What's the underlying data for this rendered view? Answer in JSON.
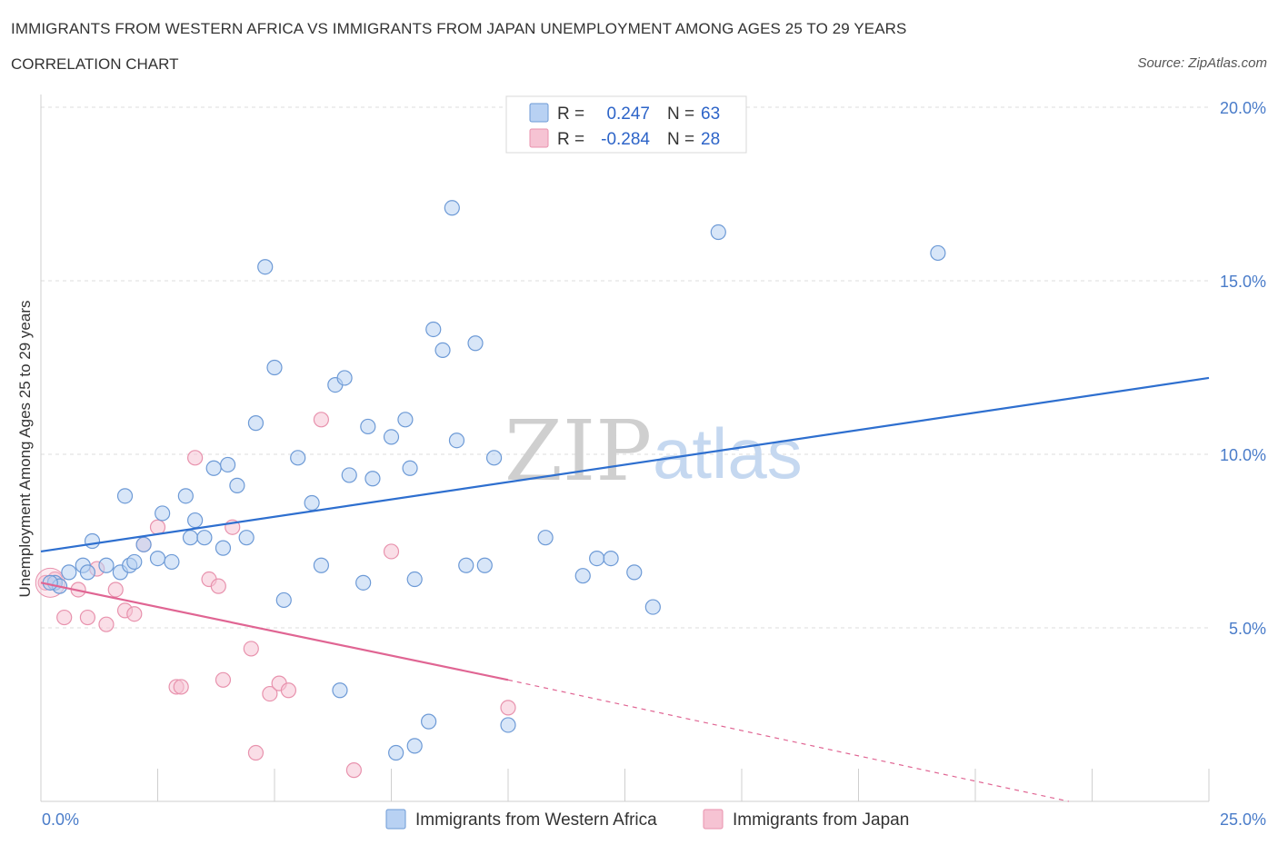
{
  "header": {
    "title": "IMMIGRANTS FROM WESTERN AFRICA VS IMMIGRANTS FROM JAPAN UNEMPLOYMENT AMONG AGES 25 TO 29 YEARS",
    "subtitle": "CORRELATION CHART",
    "source": "Source: ZipAtlas.com"
  },
  "watermark": {
    "zip": "ZIP",
    "atlas": "atlas"
  },
  "legend": {
    "r_label": "R =",
    "n_label": "N =",
    "blue": {
      "r": "0.247",
      "n": "63"
    },
    "pink": {
      "r": "-0.284",
      "n": "28"
    }
  },
  "colors": {
    "blue_fill": "#b8d1f3",
    "blue_stroke": "#6d9ad6",
    "blue_line": "#2e6fcf",
    "pink_fill": "#f6c3d3",
    "pink_stroke": "#e892ad",
    "pink_line": "#e06593",
    "grid": "#dedede",
    "axis_text": "#4a7cc9"
  },
  "chart_data": {
    "type": "scatter",
    "title": "IMMIGRANTS FROM WESTERN AFRICA VS IMMIGRANTS FROM JAPAN UNEMPLOYMENT AMONG AGES 25 TO 29 YEARS",
    "subtitle": "CORRELATION CHART",
    "ylabel": "Unemployment Among Ages 25 to 29 years",
    "xlim": [
      0,
      25
    ],
    "ylim": [
      0,
      20
    ],
    "x_tick_labels": [
      "0.0%",
      "25.0%"
    ],
    "y_ticks": [
      5,
      10,
      15,
      20
    ],
    "y_tick_labels": [
      "5.0%",
      "10.0%",
      "15.0%",
      "20.0%"
    ],
    "grid": "horizontal dashed",
    "legend_position": "top-center",
    "series": [
      {
        "name": "Immigrants from Western Africa",
        "color": "blue",
        "R": 0.247,
        "N": 63,
        "trend": {
          "x": [
            0,
            25
          ],
          "y": [
            7.2,
            12.2
          ],
          "style": "solid"
        },
        "points": [
          [
            0.3,
            6.3
          ],
          [
            0.4,
            6.2
          ],
          [
            0.6,
            6.6
          ],
          [
            0.9,
            6.8
          ],
          [
            1.0,
            6.6
          ],
          [
            1.4,
            6.8
          ],
          [
            1.1,
            7.5
          ],
          [
            1.7,
            6.6
          ],
          [
            1.9,
            6.8
          ],
          [
            2.0,
            6.9
          ],
          [
            2.2,
            7.4
          ],
          [
            2.5,
            7.0
          ],
          [
            2.6,
            8.3
          ],
          [
            2.8,
            6.9
          ],
          [
            3.1,
            8.8
          ],
          [
            3.2,
            7.6
          ],
          [
            3.3,
            8.1
          ],
          [
            3.5,
            7.6
          ],
          [
            3.7,
            9.6
          ],
          [
            3.9,
            7.3
          ],
          [
            4.0,
            9.7
          ],
          [
            4.2,
            9.1
          ],
          [
            4.4,
            7.6
          ],
          [
            4.6,
            10.9
          ],
          [
            4.8,
            15.4
          ],
          [
            5.0,
            12.5
          ],
          [
            5.2,
            5.8
          ],
          [
            5.5,
            9.9
          ],
          [
            5.8,
            8.6
          ],
          [
            6.0,
            6.8
          ],
          [
            6.3,
            12.0
          ],
          [
            6.5,
            12.2
          ],
          [
            6.4,
            3.2
          ],
          [
            6.6,
            9.4
          ],
          [
            6.9,
            6.3
          ],
          [
            7.0,
            10.8
          ],
          [
            7.1,
            9.3
          ],
          [
            7.5,
            10.5
          ],
          [
            7.6,
            1.4
          ],
          [
            7.8,
            11.0
          ],
          [
            7.9,
            9.6
          ],
          [
            8.0,
            6.4
          ],
          [
            8.0,
            1.6
          ],
          [
            8.3,
            2.3
          ],
          [
            8.4,
            13.6
          ],
          [
            8.6,
            13.0
          ],
          [
            8.8,
            17.1
          ],
          [
            8.9,
            10.4
          ],
          [
            9.1,
            6.8
          ],
          [
            9.3,
            13.2
          ],
          [
            9.5,
            6.8
          ],
          [
            9.7,
            9.9
          ],
          [
            10.0,
            2.2
          ],
          [
            10.8,
            7.6
          ],
          [
            11.6,
            6.5
          ],
          [
            11.9,
            7.0
          ],
          [
            12.2,
            7.0
          ],
          [
            12.7,
            6.6
          ],
          [
            13.1,
            5.6
          ],
          [
            14.5,
            16.4
          ],
          [
            19.2,
            15.8
          ],
          [
            0.2,
            6.3
          ],
          [
            1.8,
            8.8
          ]
        ]
      },
      {
        "name": "Immigrants from Japan",
        "color": "pink",
        "R": -0.284,
        "N": 28,
        "trend": {
          "x": [
            0,
            10.0
          ],
          "y": [
            6.3,
            3.5
          ],
          "style": "solid",
          "extended_x": [
            10.0,
            22.0
          ],
          "extended_y": [
            3.5,
            0.0
          ],
          "extended_style": "dashed"
        },
        "points": [
          [
            0.1,
            6.3
          ],
          [
            0.3,
            6.4
          ],
          [
            0.5,
            5.3
          ],
          [
            0.8,
            6.1
          ],
          [
            1.0,
            5.3
          ],
          [
            1.2,
            6.7
          ],
          [
            1.4,
            5.1
          ],
          [
            1.6,
            6.1
          ],
          [
            1.8,
            5.5
          ],
          [
            2.0,
            5.4
          ],
          [
            2.2,
            7.4
          ],
          [
            2.5,
            7.9
          ],
          [
            2.9,
            3.3
          ],
          [
            3.0,
            3.3
          ],
          [
            3.3,
            9.9
          ],
          [
            3.6,
            6.4
          ],
          [
            3.8,
            6.2
          ],
          [
            4.1,
            7.9
          ],
          [
            4.5,
            4.4
          ],
          [
            4.6,
            1.4
          ],
          [
            4.9,
            3.1
          ],
          [
            5.1,
            3.4
          ],
          [
            5.3,
            3.2
          ],
          [
            6.0,
            11.0
          ],
          [
            6.7,
            0.9
          ],
          [
            7.5,
            7.2
          ],
          [
            10.0,
            2.7
          ],
          [
            3.9,
            3.5
          ]
        ]
      }
    ]
  },
  "bottom_legend": {
    "blue_label": "Immigrants from Western Africa",
    "pink_label": "Immigrants from Japan"
  }
}
